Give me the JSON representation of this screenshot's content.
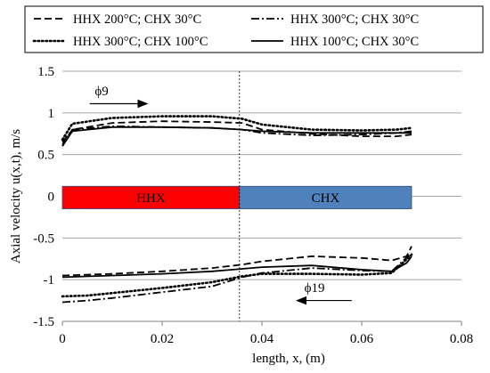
{
  "chart_data": {
    "type": "line",
    "xlabel": "length, x, (m)",
    "ylabel": "Axial velocity u(x,t), m/s",
    "xlim": [
      0,
      0.08
    ],
    "ylim": [
      -1.5,
      1.5
    ],
    "x_ticks": [
      "0",
      "0.02",
      "0.04",
      "0.06",
      "0.08"
    ],
    "y_ticks": [
      "1.5",
      "1",
      "0.5",
      "0",
      "-0.5",
      "-1",
      "-1.5"
    ],
    "grid": "horizontal",
    "legend_position": "top",
    "series": [
      {
        "name": "HHX 200°C; CHX 30°C",
        "style": "dashed",
        "upper": [
          [
            0,
            0.62
          ],
          [
            0.002,
            0.8
          ],
          [
            0.01,
            0.88
          ],
          [
            0.02,
            0.9
          ],
          [
            0.03,
            0.89
          ],
          [
            0.036,
            0.88
          ],
          [
            0.04,
            0.8
          ],
          [
            0.05,
            0.75
          ],
          [
            0.06,
            0.72
          ],
          [
            0.067,
            0.72
          ],
          [
            0.07,
            0.74
          ]
        ],
        "lower": [
          [
            0,
            -0.95
          ],
          [
            0.01,
            -0.93
          ],
          [
            0.02,
            -0.9
          ],
          [
            0.03,
            -0.86
          ],
          [
            0.036,
            -0.82
          ],
          [
            0.04,
            -0.78
          ],
          [
            0.05,
            -0.72
          ],
          [
            0.06,
            -0.74
          ],
          [
            0.066,
            -0.77
          ],
          [
            0.069,
            -0.72
          ],
          [
            0.07,
            -0.6
          ]
        ]
      },
      {
        "name": "HHX 300°C; CHX 30°C",
        "style": "dash-dot",
        "upper": [
          [
            0,
            0.65
          ],
          [
            0.002,
            0.8
          ],
          [
            0.01,
            0.84
          ],
          [
            0.02,
            0.83
          ],
          [
            0.03,
            0.82
          ],
          [
            0.036,
            0.8
          ],
          [
            0.04,
            0.76
          ],
          [
            0.05,
            0.73
          ],
          [
            0.06,
            0.74
          ],
          [
            0.067,
            0.76
          ],
          [
            0.07,
            0.78
          ]
        ],
        "lower": [
          [
            0,
            -1.27
          ],
          [
            0.005,
            -1.25
          ],
          [
            0.01,
            -1.22
          ],
          [
            0.02,
            -1.15
          ],
          [
            0.03,
            -1.08
          ],
          [
            0.036,
            -0.97
          ],
          [
            0.04,
            -0.92
          ],
          [
            0.05,
            -0.86
          ],
          [
            0.06,
            -0.89
          ],
          [
            0.066,
            -0.9
          ],
          [
            0.07,
            -0.68
          ]
        ]
      },
      {
        "name": "HHX 300°C; CHX 100°C",
        "style": "dotted",
        "upper": [
          [
            0,
            0.68
          ],
          [
            0.002,
            0.87
          ],
          [
            0.01,
            0.94
          ],
          [
            0.02,
            0.96
          ],
          [
            0.03,
            0.96
          ],
          [
            0.036,
            0.93
          ],
          [
            0.04,
            0.86
          ],
          [
            0.05,
            0.8
          ],
          [
            0.06,
            0.79
          ],
          [
            0.067,
            0.8
          ],
          [
            0.07,
            0.82
          ]
        ],
        "lower": [
          [
            0,
            -1.2
          ],
          [
            0.005,
            -1.19
          ],
          [
            0.01,
            -1.16
          ],
          [
            0.02,
            -1.1
          ],
          [
            0.03,
            -1.03
          ],
          [
            0.036,
            -0.96
          ],
          [
            0.04,
            -0.93
          ],
          [
            0.05,
            -0.93
          ],
          [
            0.06,
            -0.94
          ],
          [
            0.066,
            -0.92
          ],
          [
            0.07,
            -0.7
          ]
        ]
      },
      {
        "name": "HHX 100°C; CHX 30°C",
        "style": "solid",
        "upper": [
          [
            0,
            0.6
          ],
          [
            0.002,
            0.78
          ],
          [
            0.01,
            0.83
          ],
          [
            0.02,
            0.83
          ],
          [
            0.03,
            0.82
          ],
          [
            0.036,
            0.8
          ],
          [
            0.04,
            0.78
          ],
          [
            0.05,
            0.76
          ],
          [
            0.06,
            0.76
          ],
          [
            0.067,
            0.76
          ],
          [
            0.07,
            0.76
          ]
        ],
        "lower": [
          [
            0,
            -0.97
          ],
          [
            0.01,
            -0.95
          ],
          [
            0.02,
            -0.93
          ],
          [
            0.03,
            -0.9
          ],
          [
            0.036,
            -0.87
          ],
          [
            0.04,
            -0.85
          ],
          [
            0.05,
            -0.83
          ],
          [
            0.06,
            -0.88
          ],
          [
            0.066,
            -0.9
          ],
          [
            0.069,
            -0.8
          ],
          [
            0.07,
            -0.72
          ]
        ]
      }
    ],
    "blocks": [
      {
        "label": "HHX",
        "x": [
          0,
          0.0355
        ],
        "y": [
          -0.15,
          0.12
        ],
        "color": "#ff0000"
      },
      {
        "label": "CHX",
        "x": [
          0.0355,
          0.07
        ],
        "y": [
          -0.15,
          0.12
        ],
        "color": "#4f81bd"
      }
    ],
    "divider_x": 0.0355,
    "annotations": [
      {
        "label": "ϕ9",
        "x": 0.0065,
        "y": 1.21,
        "arrow": [
          [
            0.0055,
            1.11
          ],
          [
            0.017,
            1.11
          ]
        ]
      },
      {
        "label": "ϕ19",
        "x": 0.0485,
        "y": -1.15,
        "arrow": [
          [
            0.058,
            -1.25
          ],
          [
            0.047,
            -1.25
          ]
        ]
      }
    ]
  }
}
